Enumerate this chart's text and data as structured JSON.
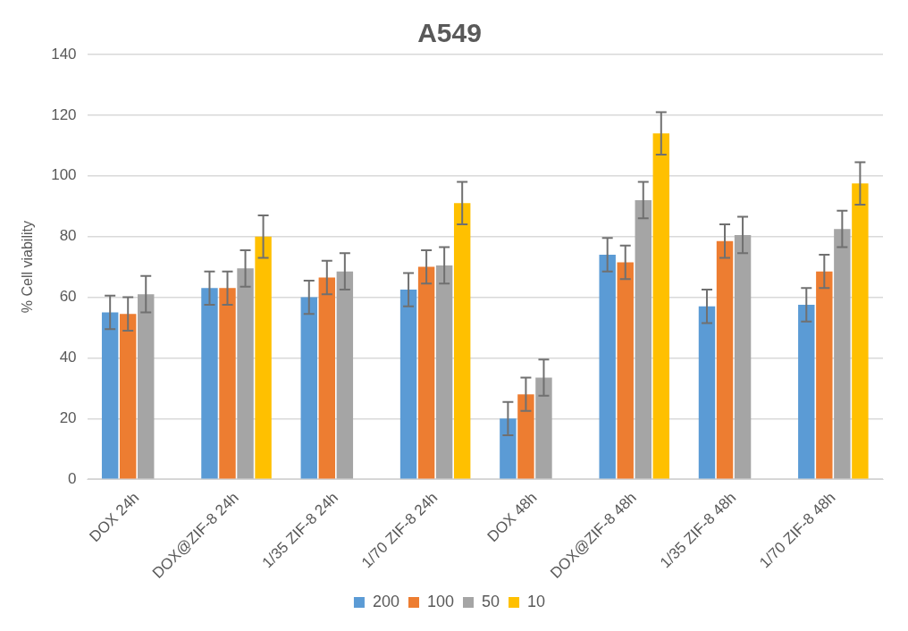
{
  "chart_data": {
    "type": "bar",
    "title": "A549",
    "ylabel": "% Cell viability",
    "categories": [
      "DOX 24h",
      "DOX@ZIF-8 24h",
      "1/35 ZIF-8 24h",
      "1/70 ZIF-8 24h",
      "DOX 48h",
      "DOX@ZIF-8 48h",
      "1/35 ZIF-8 48h",
      "1/70 ZIF-8 48h"
    ],
    "series": [
      {
        "name": "200",
        "color": "#5b9bd5",
        "values": [
          55,
          63,
          60,
          62.5,
          20,
          74,
          57,
          57.5
        ],
        "errors": [
          5.5,
          5.5,
          5.5,
          5.5,
          5.5,
          5.5,
          5.5,
          5.5
        ]
      },
      {
        "name": "100",
        "color": "#ed7d31",
        "values": [
          54.5,
          63,
          66.5,
          70,
          28,
          71.5,
          78.5,
          68.5
        ],
        "errors": [
          5.5,
          5.5,
          5.5,
          5.5,
          5.5,
          5.5,
          5.5,
          5.5
        ]
      },
      {
        "name": "50",
        "color": "#a5a5a5",
        "values": [
          61,
          69.5,
          68.5,
          70.5,
          33.5,
          92,
          80.5,
          82.5
        ],
        "errors": [
          6,
          6,
          6,
          6,
          6,
          6,
          6,
          6
        ]
      },
      {
        "name": "10",
        "color": "#ffc000",
        "values": [
          null,
          80,
          null,
          91,
          null,
          114,
          null,
          97.5
        ],
        "errors": [
          null,
          7,
          null,
          7,
          null,
          7,
          null,
          7
        ]
      }
    ],
    "ylim": [
      0,
      140
    ],
    "yticks": [
      0,
      20,
      40,
      60,
      80,
      100,
      120,
      140
    ],
    "grid": "y",
    "legend": "bottom"
  }
}
